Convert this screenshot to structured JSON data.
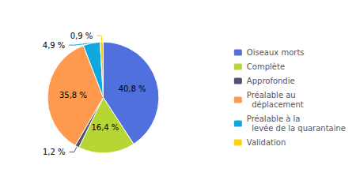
{
  "chart_data": {
    "type": "pie",
    "categories": [
      "Oiseaux morts",
      "Complète",
      "Approfondie",
      "Préalable au\n  déplacement",
      "Préalable à la\n  levée de la quarantaine",
      "Validation"
    ],
    "values": [
      40.8,
      16.4,
      1.2,
      35.8,
      4.9,
      0.9
    ],
    "value_labels": [
      "40,8 %",
      "16,4 %",
      "1,2 %",
      "35,8 %",
      "4,9 %",
      "0,9 %"
    ],
    "data_labels": true,
    "legend": "right"
  }
}
